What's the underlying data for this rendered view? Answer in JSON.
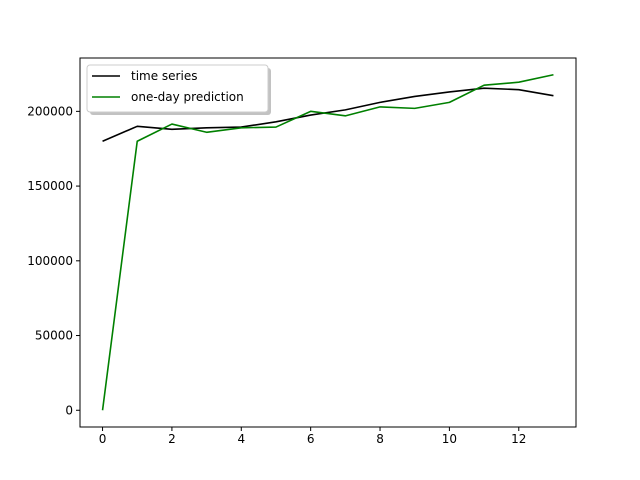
{
  "chart_data": {
    "type": "line",
    "x": [
      0,
      1,
      2,
      3,
      4,
      5,
      6,
      7,
      8,
      9,
      10,
      11,
      12,
      13
    ],
    "series": [
      {
        "name": "time series",
        "color": "#000000",
        "values": [
          180000,
          190000,
          188000,
          189000,
          189500,
          193000,
          197500,
          201000,
          206000,
          210000,
          213000,
          215500,
          214500,
          210500
        ]
      },
      {
        "name": "one-day prediction",
        "color": "#008000",
        "values": [
          0,
          180000,
          191500,
          186000,
          189000,
          189500,
          200000,
          197000,
          203000,
          202000,
          206000,
          217500,
          219500,
          224500
        ]
      }
    ],
    "xlim": [
      -0.65,
      13.65
    ],
    "ylim": [
      -11200,
      235700
    ],
    "xticks": [
      0,
      2,
      4,
      6,
      8,
      10,
      12
    ],
    "yticks": [
      0,
      50000,
      100000,
      150000,
      200000
    ],
    "xtick_labels": [
      "0",
      "2",
      "4",
      "6",
      "8",
      "10",
      "12"
    ],
    "ytick_labels": [
      "0",
      "50000",
      "100000",
      "150000",
      "200000"
    ],
    "grid": false,
    "legend_position": "top-left"
  }
}
